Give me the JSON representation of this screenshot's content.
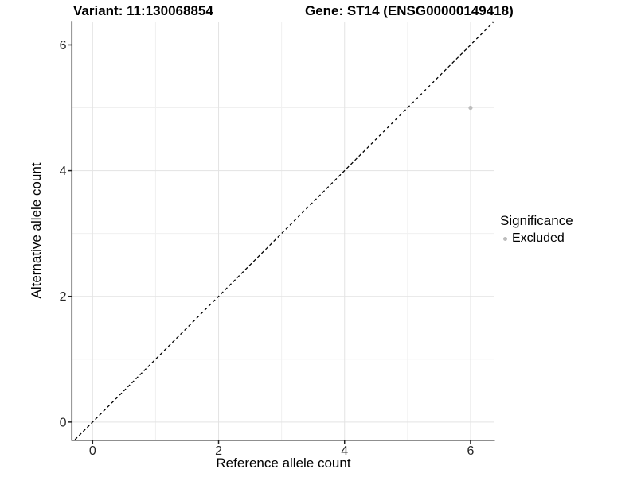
{
  "chart_data": {
    "type": "scatter",
    "title_left": "Variant: 11:130068854",
    "title_right": "Gene: ST14 (ENSG00000149418)",
    "xlabel": "Reference allele count",
    "ylabel": "Alternative allele count",
    "xlim": [
      -0.32,
      6.38
    ],
    "ylim": [
      -0.28,
      6.36
    ],
    "x_ticks": [
      0,
      2,
      4,
      6
    ],
    "y_ticks": [
      0,
      2,
      4,
      6
    ],
    "x_minor_ticks": [
      1,
      3,
      5
    ],
    "y_minor_ticks": [
      1,
      3,
      5
    ],
    "grid": true,
    "reference_line": {
      "type": "abline",
      "slope": 1,
      "intercept": 0,
      "style": "dashed",
      "color": "#000000"
    },
    "series": [
      {
        "name": "Excluded",
        "color": "#bdbdbd",
        "points": [
          {
            "x": 6,
            "y": 5
          }
        ]
      }
    ],
    "legend": {
      "title": "Significance",
      "position": "right",
      "entries": [
        {
          "label": "Excluded",
          "color": "#bdbdbd"
        }
      ]
    },
    "colors": {
      "background": "#ffffff",
      "grid_major": "#e3e3e3",
      "grid_minor": "#f0f0f0",
      "axis_line": "#1f1f1f",
      "tick_label": "#262626"
    }
  }
}
